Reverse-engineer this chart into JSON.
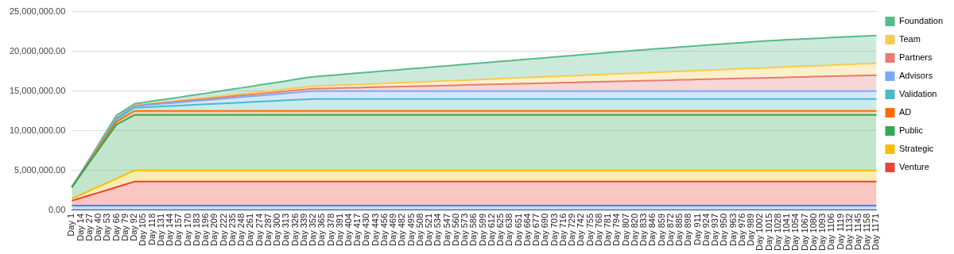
{
  "chart_data": {
    "type": "area",
    "stacked": true,
    "grid": "y",
    "legend": "right",
    "ylim": [
      0,
      25000000
    ],
    "yticks": [
      {
        "value": 0,
        "label": "0.00"
      },
      {
        "value": 5000000,
        "label": "5,000,000.00"
      },
      {
        "value": 10000000,
        "label": "10,000,000.00"
      },
      {
        "value": 15000000,
        "label": "15,000,000.00"
      },
      {
        "value": 20000000,
        "label": "20,000,000.00"
      },
      {
        "value": 25000000,
        "label": "25,000,000.00"
      }
    ],
    "categories": [
      "Day 1",
      "Day 14",
      "Day 27",
      "Day 40",
      "Day 53",
      "Day 66",
      "Day 79",
      "Day 92",
      "Day 105",
      "Day 118",
      "Day 131",
      "Day 144",
      "Day 157",
      "Day 170",
      "Day 183",
      "Day 196",
      "Day 209",
      "Day 222",
      "Day 235",
      "Day 248",
      "Day 261",
      "Day 274",
      "Day 287",
      "Day 300",
      "Day 313",
      "Day 326",
      "Day 339",
      "Day 352",
      "Day 365",
      "Day 378",
      "Day 391",
      "Day 404",
      "Day 417",
      "Day 430",
      "Day 443",
      "Day 456",
      "Day 469",
      "Day 482",
      "Day 495",
      "Day 508",
      "Day 521",
      "Day 534",
      "Day 547",
      "Day 560",
      "Day 573",
      "Day 586",
      "Day 599",
      "Day 612",
      "Day 625",
      "Day 638",
      "Day 651",
      "Day 664",
      "Day 677",
      "Day 690",
      "Day 703",
      "Day 716",
      "Day 729",
      "Day 742",
      "Day 755",
      "Day 768",
      "Day 781",
      "Day 794",
      "Day 807",
      "Day 820",
      "Day 833",
      "Day 846",
      "Day 859",
      "Day 872",
      "Day 885",
      "Day 898",
      "Day 911",
      "Day 924",
      "Day 937",
      "Day 950",
      "Day 963",
      "Day 976",
      "Day 989",
      "Day 1002",
      "Day 1015",
      "Day 1028",
      "Day 1041",
      "Day 1054",
      "Day 1067",
      "Day 1080",
      "Day 1093",
      "Day 1106",
      "Day 1119",
      "Day 1132",
      "Day 1145",
      "Day 1158",
      "Day 1171"
    ],
    "series": [
      {
        "color": "#4285f4",
        "values": [
          600000,
          600000,
          600000,
          600000,
          600000,
          600000,
          600000,
          600000,
          600000,
          600000,
          600000,
          600000,
          600000,
          600000,
          600000,
          600000,
          600000,
          600000,
          600000,
          600000,
          600000,
          600000,
          600000,
          600000,
          600000,
          600000,
          600000,
          600000,
          600000,
          600000,
          600000,
          600000,
          600000,
          600000,
          600000,
          600000,
          600000,
          600000,
          600000,
          600000,
          600000,
          600000,
          600000,
          600000,
          600000,
          600000,
          600000,
          600000,
          600000,
          600000,
          600000,
          600000,
          600000,
          600000,
          600000,
          600000,
          600000,
          600000,
          600000,
          600000,
          600000,
          600000,
          600000,
          600000,
          600000,
          600000,
          600000,
          600000,
          600000,
          600000,
          600000,
          600000,
          600000,
          600000,
          600000,
          600000,
          600000,
          600000,
          600000,
          600000,
          600000,
          600000,
          600000,
          600000,
          600000,
          600000,
          600000,
          600000,
          600000,
          600000,
          600000
        ]
      },
      {
        "name": "Venture",
        "color": "#ea4335",
        "values": [
          600000,
          940000,
          1290000,
          1630000,
          1970000,
          2310000,
          2660000,
          3000000,
          3000000,
          3000000,
          3000000,
          3000000,
          3000000,
          3000000,
          3000000,
          3000000,
          3000000,
          3000000,
          3000000,
          3000000,
          3000000,
          3000000,
          3000000,
          3000000,
          3000000,
          3000000,
          3000000,
          3000000,
          3000000,
          3000000,
          3000000,
          3000000,
          3000000,
          3000000,
          3000000,
          3000000,
          3000000,
          3000000,
          3000000,
          3000000,
          3000000,
          3000000,
          3000000,
          3000000,
          3000000,
          3000000,
          3000000,
          3000000,
          3000000,
          3000000,
          3000000,
          3000000,
          3000000,
          3000000,
          3000000,
          3000000,
          3000000,
          3000000,
          3000000,
          3000000,
          3000000,
          3000000,
          3000000,
          3000000,
          3000000,
          3000000,
          3000000,
          3000000,
          3000000,
          3000000,
          3000000,
          3000000,
          3000000,
          3000000,
          3000000,
          3000000,
          3000000,
          3000000,
          3000000,
          3000000,
          3000000,
          3000000,
          3000000,
          3000000,
          3000000,
          3000000,
          3000000,
          3000000,
          3000000,
          3000000,
          3000000
        ]
      },
      {
        "name": "Strategic",
        "color": "#fbbc04",
        "values": [
          250000,
          410000,
          580000,
          740000,
          910000,
          1070000,
          1240000,
          1400000,
          1400000,
          1400000,
          1400000,
          1400000,
          1400000,
          1400000,
          1400000,
          1400000,
          1400000,
          1400000,
          1400000,
          1400000,
          1400000,
          1400000,
          1400000,
          1400000,
          1400000,
          1400000,
          1400000,
          1400000,
          1400000,
          1400000,
          1400000,
          1400000,
          1400000,
          1400000,
          1400000,
          1400000,
          1400000,
          1400000,
          1400000,
          1400000,
          1400000,
          1400000,
          1400000,
          1400000,
          1400000,
          1400000,
          1400000,
          1400000,
          1400000,
          1400000,
          1400000,
          1400000,
          1400000,
          1400000,
          1400000,
          1400000,
          1400000,
          1400000,
          1400000,
          1400000,
          1400000,
          1400000,
          1400000,
          1400000,
          1400000,
          1400000,
          1400000,
          1400000,
          1400000,
          1400000,
          1400000,
          1400000,
          1400000,
          1400000,
          1400000,
          1400000,
          1400000,
          1400000,
          1400000,
          1400000,
          1400000,
          1400000,
          1400000,
          1400000,
          1400000,
          1400000,
          1400000,
          1400000,
          1400000,
          1400000,
          1400000
        ]
      },
      {
        "name": "Public",
        "color": "#34a853",
        "values": [
          1450000,
          2520000,
          3590000,
          4660000,
          5730000,
          6800000,
          6900000,
          7000000,
          7000000,
          7000000,
          7000000,
          7000000,
          7000000,
          7000000,
          7000000,
          7000000,
          7000000,
          7000000,
          7000000,
          7000000,
          7000000,
          7000000,
          7000000,
          7000000,
          7000000,
          7000000,
          7000000,
          7000000,
          7000000,
          7000000,
          7000000,
          7000000,
          7000000,
          7000000,
          7000000,
          7000000,
          7000000,
          7000000,
          7000000,
          7000000,
          7000000,
          7000000,
          7000000,
          7000000,
          7000000,
          7000000,
          7000000,
          7000000,
          7000000,
          7000000,
          7000000,
          7000000,
          7000000,
          7000000,
          7000000,
          7000000,
          7000000,
          7000000,
          7000000,
          7000000,
          7000000,
          7000000,
          7000000,
          7000000,
          7000000,
          7000000,
          7000000,
          7000000,
          7000000,
          7000000,
          7000000,
          7000000,
          7000000,
          7000000,
          7000000,
          7000000,
          7000000,
          7000000,
          7000000,
          7000000,
          7000000,
          7000000,
          7000000,
          7000000,
          7000000,
          7000000,
          7000000,
          7000000,
          7000000,
          7000000,
          7000000
        ]
      },
      {
        "name": "AD",
        "color": "#ff6d01",
        "values": [
          0,
          70000,
          140000,
          210000,
          290000,
          360000,
          430000,
          500000,
          500000,
          500000,
          500000,
          500000,
          500000,
          500000,
          500000,
          500000,
          500000,
          500000,
          500000,
          500000,
          500000,
          500000,
          500000,
          500000,
          500000,
          500000,
          500000,
          500000,
          500000,
          500000,
          500000,
          500000,
          500000,
          500000,
          500000,
          500000,
          500000,
          500000,
          500000,
          500000,
          500000,
          500000,
          500000,
          500000,
          500000,
          500000,
          500000,
          500000,
          500000,
          500000,
          500000,
          500000,
          500000,
          500000,
          500000,
          500000,
          500000,
          500000,
          500000,
          500000,
          500000,
          500000,
          500000,
          500000,
          500000,
          500000,
          500000,
          500000,
          500000,
          500000,
          500000,
          500000,
          500000,
          500000,
          500000,
          500000,
          500000,
          500000,
          500000,
          500000,
          500000,
          500000,
          500000,
          500000,
          500000,
          500000,
          500000,
          500000,
          500000,
          500000,
          500000
        ]
      },
      {
        "name": "Validation",
        "color": "#46bdc6",
        "values": [
          0,
          60000,
          110000,
          170000,
          230000,
          290000,
          340000,
          400000,
          460000,
          510000,
          570000,
          620000,
          680000,
          730000,
          790000,
          840000,
          900000,
          950000,
          1010000,
          1060000,
          1120000,
          1170000,
          1230000,
          1280000,
          1340000,
          1390000,
          1450000,
          1500000,
          1500000,
          1500000,
          1500000,
          1500000,
          1500000,
          1500000,
          1500000,
          1500000,
          1500000,
          1500000,
          1500000,
          1500000,
          1500000,
          1500000,
          1500000,
          1500000,
          1500000,
          1500000,
          1500000,
          1500000,
          1500000,
          1500000,
          1500000,
          1500000,
          1500000,
          1500000,
          1500000,
          1500000,
          1500000,
          1500000,
          1500000,
          1500000,
          1500000,
          1500000,
          1500000,
          1500000,
          1500000,
          1500000,
          1500000,
          1500000,
          1500000,
          1500000,
          1500000,
          1500000,
          1500000,
          1500000,
          1500000,
          1500000,
          1500000,
          1500000,
          1500000,
          1500000,
          1500000,
          1500000,
          1500000,
          1500000,
          1500000,
          1500000,
          1500000,
          1500000,
          1500000,
          1500000,
          1500000
        ]
      },
      {
        "name": "Advisors",
        "color": "#7baaf7",
        "values": [
          0,
          30000,
          60000,
          90000,
          110000,
          140000,
          170000,
          200000,
          240000,
          280000,
          320000,
          360000,
          400000,
          440000,
          480000,
          520000,
          560000,
          600000,
          640000,
          680000,
          720000,
          760000,
          800000,
          840000,
          880000,
          920000,
          960000,
          1000000,
          1000000,
          1000000,
          1000000,
          1000000,
          1000000,
          1000000,
          1000000,
          1000000,
          1000000,
          1000000,
          1000000,
          1000000,
          1000000,
          1000000,
          1000000,
          1000000,
          1000000,
          1000000,
          1000000,
          1000000,
          1000000,
          1000000,
          1000000,
          1000000,
          1000000,
          1000000,
          1000000,
          1000000,
          1000000,
          1000000,
          1000000,
          1000000,
          1000000,
          1000000,
          1000000,
          1000000,
          1000000,
          1000000,
          1000000,
          1000000,
          1000000,
          1000000,
          1000000,
          1000000,
          1000000,
          1000000,
          1000000,
          1000000,
          1000000,
          1000000,
          1000000,
          1000000,
          1000000,
          1000000,
          1000000,
          1000000,
          1000000,
          1000000,
          1000000,
          1000000,
          1000000,
          1000000,
          1000000
        ]
      },
      {
        "name": "Partners",
        "color": "#e67c73",
        "values": [
          0,
          10000,
          10000,
          20000,
          30000,
          40000,
          40000,
          50000,
          60000,
          80000,
          90000,
          100000,
          110000,
          130000,
          140000,
          150000,
          160000,
          180000,
          190000,
          200000,
          210000,
          230000,
          240000,
          250000,
          260000,
          280000,
          290000,
          300000,
          330000,
          350000,
          380000,
          410000,
          430000,
          460000,
          490000,
          520000,
          540000,
          570000,
          600000,
          620000,
          650000,
          680000,
          700000,
          730000,
          760000,
          790000,
          810000,
          840000,
          870000,
          890000,
          920000,
          950000,
          970000,
          1000000,
          1030000,
          1060000,
          1080000,
          1110000,
          1140000,
          1160000,
          1190000,
          1220000,
          1240000,
          1270000,
          1300000,
          1330000,
          1350000,
          1380000,
          1410000,
          1430000,
          1460000,
          1490000,
          1510000,
          1540000,
          1570000,
          1600000,
          1620000,
          1650000,
          1680000,
          1700000,
          1730000,
          1760000,
          1780000,
          1810000,
          1840000,
          1870000,
          1890000,
          1920000,
          1950000,
          1970000,
          2000000
        ]
      },
      {
        "name": "Team",
        "color": "#f7cb4d",
        "values": [
          0,
          10000,
          10000,
          20000,
          30000,
          40000,
          40000,
          50000,
          60000,
          80000,
          90000,
          100000,
          110000,
          130000,
          140000,
          150000,
          160000,
          180000,
          190000,
          200000,
          210000,
          230000,
          240000,
          250000,
          260000,
          280000,
          290000,
          300000,
          320000,
          340000,
          360000,
          380000,
          400000,
          410000,
          430000,
          450000,
          470000,
          490000,
          510000,
          530000,
          550000,
          570000,
          590000,
          600000,
          620000,
          640000,
          660000,
          680000,
          700000,
          720000,
          740000,
          760000,
          780000,
          790000,
          810000,
          830000,
          850000,
          870000,
          890000,
          910000,
          930000,
          950000,
          970000,
          980000,
          1000000,
          1020000,
          1040000,
          1060000,
          1080000,
          1100000,
          1120000,
          1140000,
          1160000,
          1170000,
          1190000,
          1210000,
          1230000,
          1250000,
          1270000,
          1290000,
          1310000,
          1330000,
          1350000,
          1360000,
          1380000,
          1400000,
          1420000,
          1440000,
          1460000,
          1480000,
          1500000
        ]
      },
      {
        "name": "Foundation",
        "color": "#57bb8a",
        "values": [
          0,
          60000,
          120000,
          180000,
          240000,
          300000,
          250000,
          200000,
          240000,
          290000,
          330000,
          370000,
          410000,
          460000,
          500000,
          550000,
          610000,
          660000,
          720000,
          770000,
          820000,
          880000,
          930000,
          980000,
          1040000,
          1090000,
          1150000,
          1200000,
          1250000,
          1290000,
          1340000,
          1380000,
          1430000,
          1480000,
          1520000,
          1570000,
          1610000,
          1660000,
          1710000,
          1750000,
          1800000,
          1840000,
          1890000,
          1940000,
          1980000,
          2030000,
          2070000,
          2120000,
          2170000,
          2210000,
          2260000,
          2300000,
          2350000,
          2400000,
          2440000,
          2490000,
          2530000,
          2580000,
          2630000,
          2670000,
          2720000,
          2760000,
          2810000,
          2860000,
          2900000,
          2940000,
          2970000,
          3010000,
          3040000,
          3080000,
          3110000,
          3150000,
          3190000,
          3220000,
          3260000,
          3290000,
          3330000,
          3360000,
          3400000,
          3410000,
          3420000,
          3430000,
          3430000,
          3440000,
          3450000,
          3460000,
          3470000,
          3480000,
          3480000,
          3490000,
          3500000
        ]
      }
    ]
  }
}
